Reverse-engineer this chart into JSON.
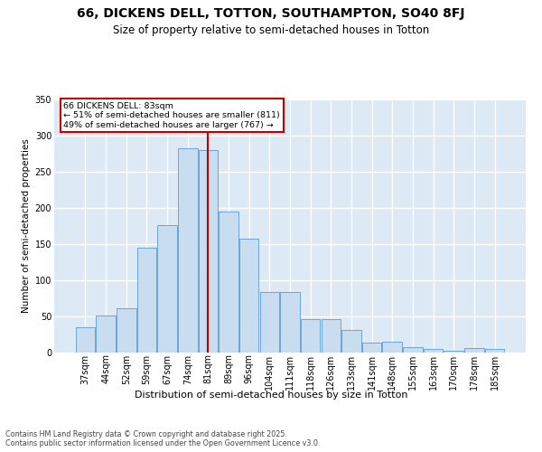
{
  "title": "66, DICKENS DELL, TOTTON, SOUTHAMPTON, SO40 8FJ",
  "subtitle": "Size of property relative to semi-detached houses in Totton",
  "xlabel": "Distribution of semi-detached houses by size in Totton",
  "ylabel": "Number of semi-detached properties",
  "categories": [
    "37sqm",
    "44sqm",
    "52sqm",
    "59sqm",
    "67sqm",
    "74sqm",
    "81sqm",
    "89sqm",
    "96sqm",
    "104sqm",
    "111sqm",
    "118sqm",
    "126sqm",
    "133sqm",
    "141sqm",
    "148sqm",
    "155sqm",
    "163sqm",
    "170sqm",
    "178sqm",
    "185sqm"
  ],
  "values": [
    35,
    51,
    61,
    145,
    176,
    283,
    280,
    195,
    157,
    84,
    84,
    46,
    46,
    31,
    14,
    15,
    8,
    5,
    2,
    6,
    5
  ],
  "bar_color": "#c9ddf0",
  "bar_edge_color": "#5b9bd5",
  "marker_bin_index": 6,
  "marker_label": "66 DICKENS DELL: 83sqm",
  "marker_line_color": "#c00000",
  "annotation_line1": "← 51% of semi-detached houses are smaller (811)",
  "annotation_line2": "49% of semi-detached houses are larger (767) →",
  "annotation_box_edgecolor": "#c00000",
  "ylim": [
    0,
    350
  ],
  "yticks": [
    0,
    50,
    100,
    150,
    200,
    250,
    300,
    350
  ],
  "plot_bg_color": "#ddeaf6",
  "footer": "Contains HM Land Registry data © Crown copyright and database right 2025.\nContains public sector information licensed under the Open Government Licence v3.0.",
  "title_fontsize": 10,
  "subtitle_fontsize": 8.5,
  "tick_fontsize": 7,
  "ylabel_fontsize": 7.5,
  "xlabel_fontsize": 8,
  "footer_fontsize": 5.8
}
